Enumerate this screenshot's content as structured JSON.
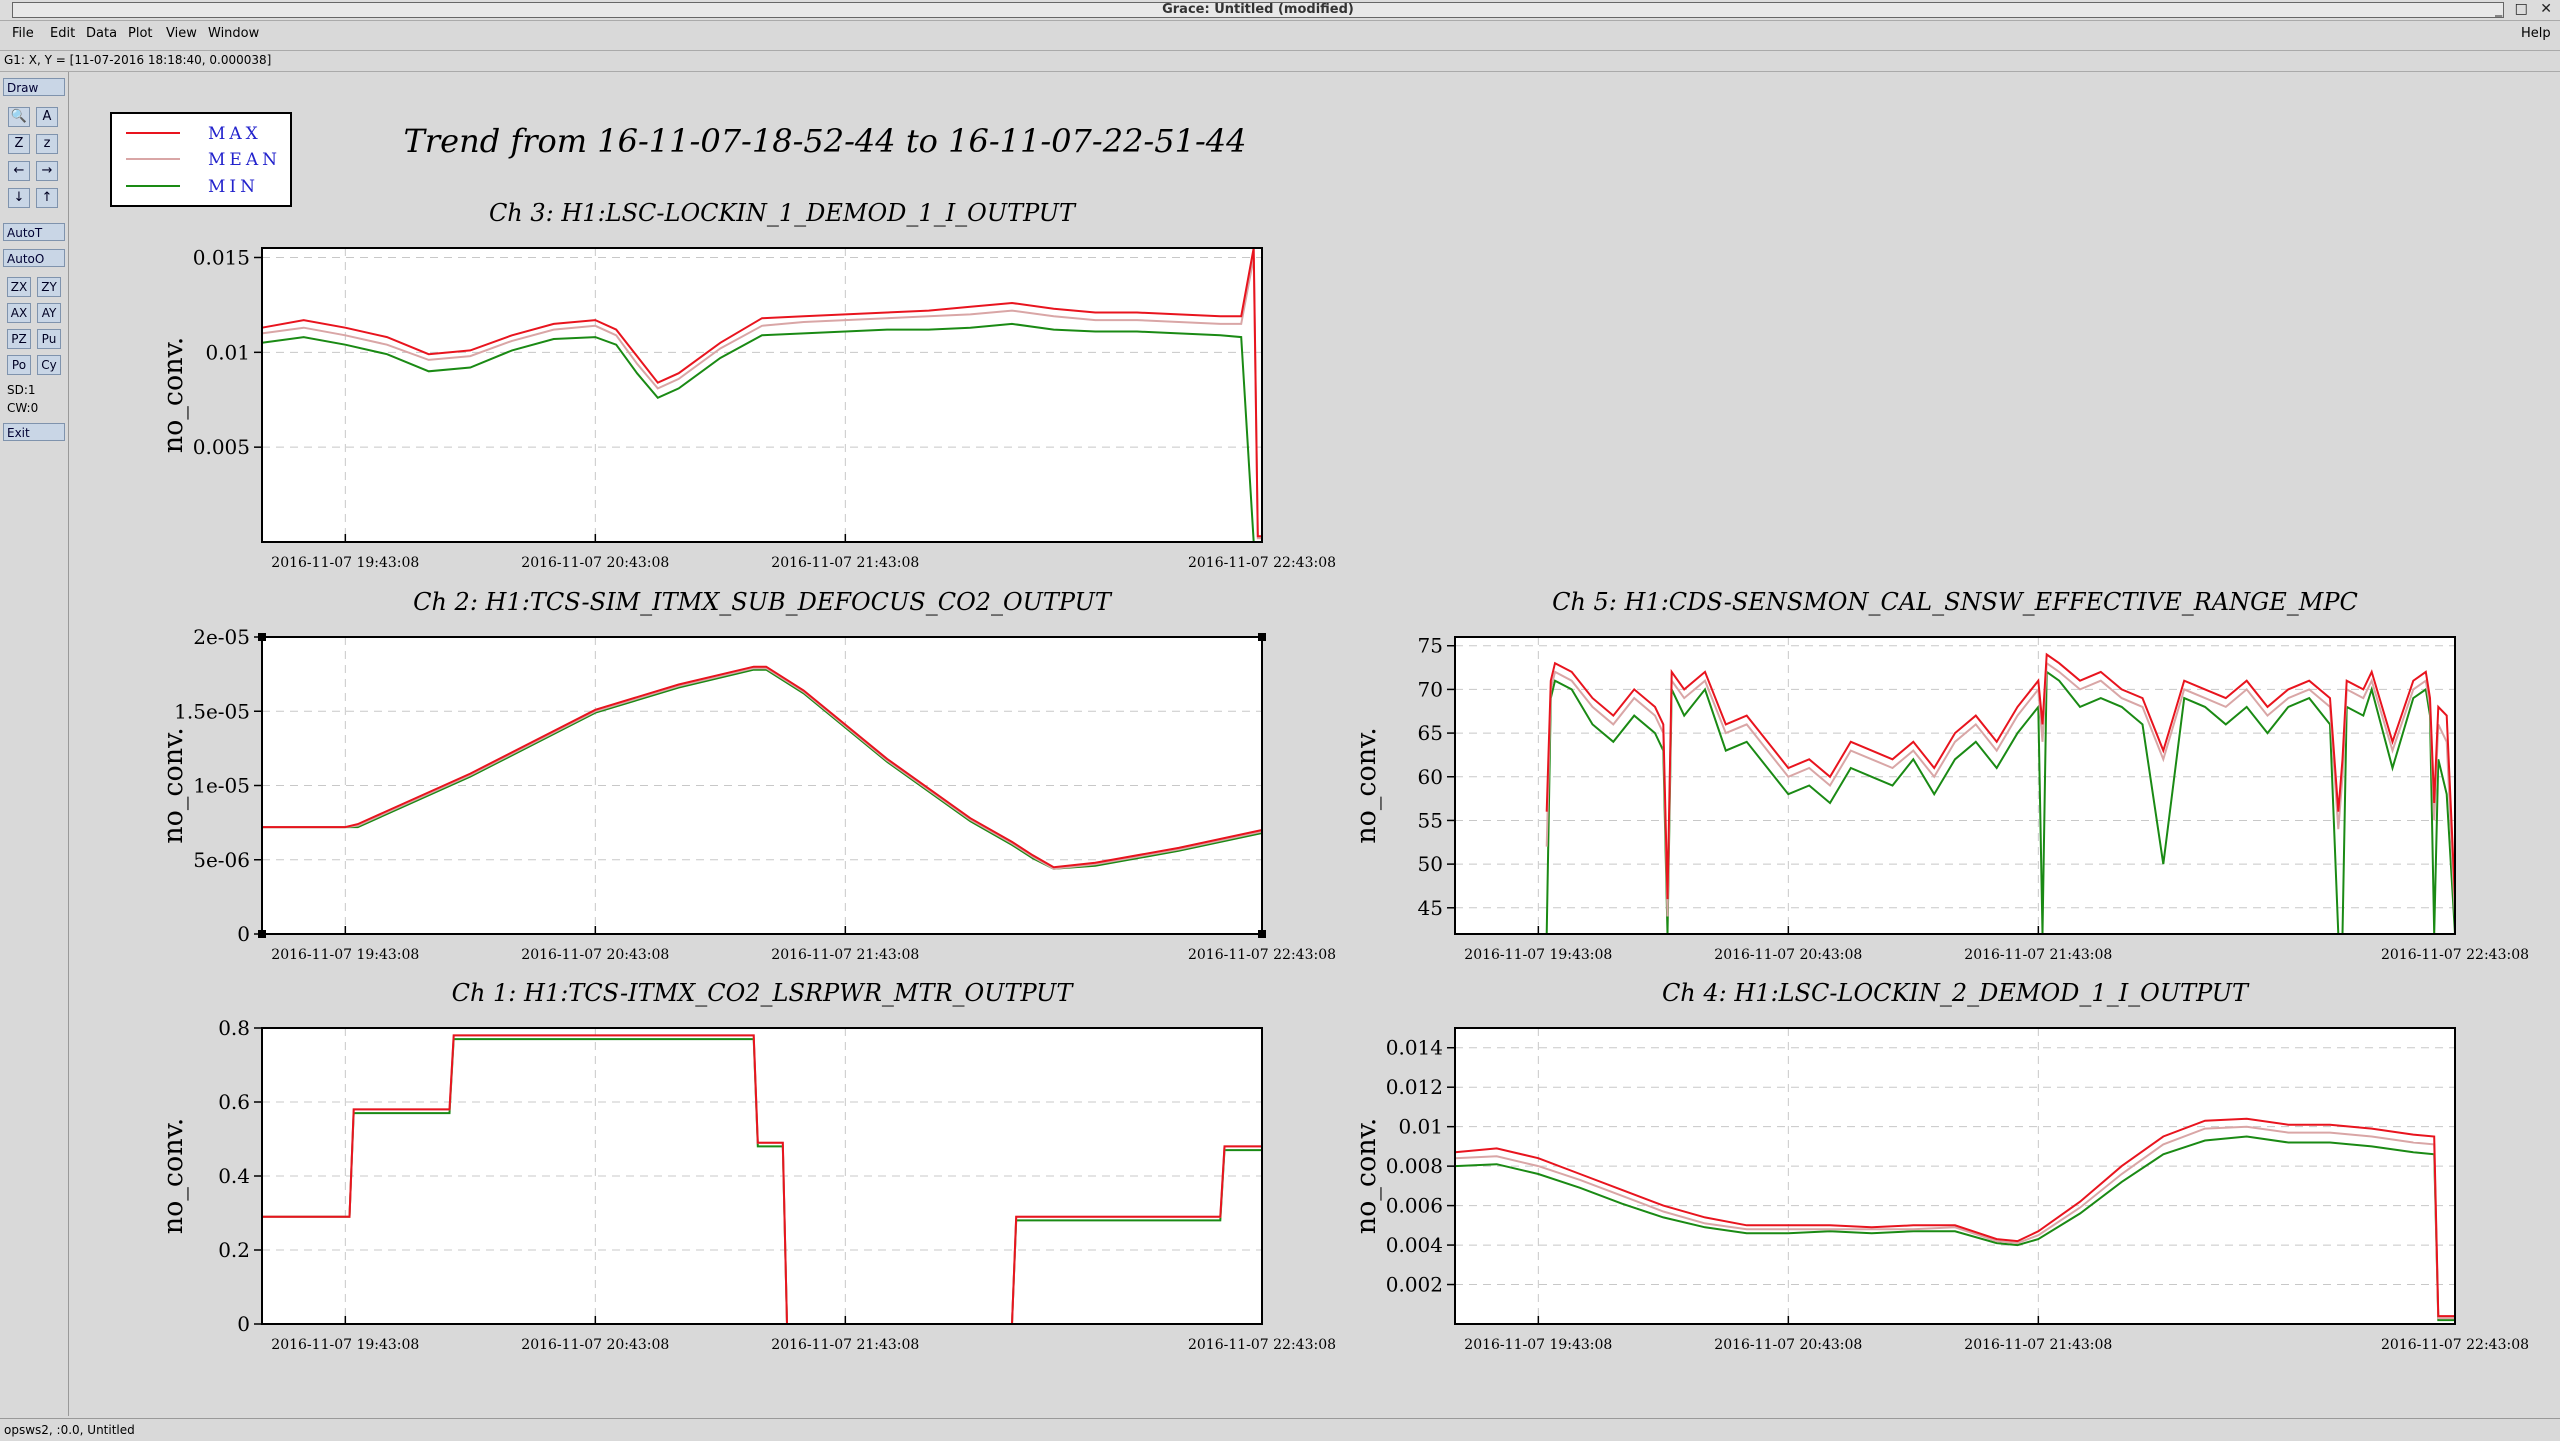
{
  "window": {
    "title": "Grace: Untitled (modified)",
    "controls": "_ □ ✕"
  },
  "menu": {
    "items": [
      "File",
      "Edit",
      "Data",
      "Plot",
      "View",
      "Window"
    ],
    "help": "Help"
  },
  "locator": {
    "text": "G1: X, Y = [11-07-2016 18:18:40, 0.000038]"
  },
  "toolbar": {
    "draw": "Draw",
    "icons": [
      "zoom-icon",
      "autoscale-icon",
      "zoom-in-icon",
      "zoom-out-icon",
      "scroll-left-icon",
      "scroll-right-icon",
      "scroll-down-icon",
      "scroll-up-icon"
    ],
    "auto_t": "AutoT",
    "auto_o": "AutoO",
    "small": [
      "ZX",
      "ZY",
      "AX",
      "AY",
      "PZ",
      "Pu",
      "Po",
      "Cy"
    ],
    "sd": "SD:1",
    "cw": "CW:0",
    "exit": "Exit"
  },
  "status": {
    "text": "opsws2, :0.0, Untitled"
  },
  "page_title": "Trend from 16-11-07-18-52-44 to 16-11-07-22-51-44",
  "legend": {
    "entries": [
      {
        "label": "MAX",
        "color": "#e8141e"
      },
      {
        "label": "MEAN",
        "color": "#d9a6a6"
      },
      {
        "label": "MIN",
        "color": "#1a8a14"
      }
    ]
  },
  "colors": {
    "max": "#e8141e",
    "mean": "#d9a6a6",
    "min": "#1a8a14",
    "label": "#2222cc"
  },
  "chart_data": [
    {
      "type": "line",
      "title": "Ch 3: H1:LSC-LOCKIN_1_DEMOD_1_I_OUTPUT",
      "ylabel": "no_conv.",
      "x_ticks": [
        "2016-11-07 19:43:08",
        "2016-11-07 20:43:08",
        "2016-11-07 21:43:08",
        "2016-11-07 22:43:08"
      ],
      "ylim": [
        0,
        0.0155
      ],
      "y_ticks": [
        {
          "v": 0.015,
          "l": "0.015"
        },
        {
          "v": 0.01,
          "l": "0.01"
        },
        {
          "v": 0.005,
          "l": "0.005"
        }
      ],
      "x": [
        0,
        10,
        20,
        30,
        40,
        50,
        60,
        70,
        80,
        85,
        90,
        95,
        100,
        110,
        120,
        130,
        140,
        150,
        160,
        170,
        180,
        190,
        200,
        210,
        220,
        230,
        235,
        238,
        239,
        240
      ],
      "series": [
        {
          "name": "MAX",
          "values": [
            0.0113,
            0.0117,
            0.0113,
            0.0108,
            0.0099,
            0.0101,
            0.0109,
            0.0115,
            0.0117,
            0.0112,
            0.0098,
            0.0084,
            0.0089,
            0.0105,
            0.0118,
            0.0119,
            0.012,
            0.0121,
            0.0122,
            0.0124,
            0.0126,
            0.0123,
            0.0121,
            0.0121,
            0.012,
            0.0119,
            0.0119,
            0.0155,
            0.0003,
            0.0003
          ]
        },
        {
          "name": "MEAN",
          "values": [
            0.011,
            0.0113,
            0.0109,
            0.0104,
            0.0096,
            0.0098,
            0.0106,
            0.0112,
            0.0114,
            0.0109,
            0.0094,
            0.0081,
            0.0086,
            0.0102,
            0.0114,
            0.0116,
            0.0117,
            0.0118,
            0.0119,
            0.012,
            0.0122,
            0.0119,
            0.0117,
            0.0117,
            0.0116,
            0.0115,
            0.0115,
            0.015,
            0.0002,
            0.0002
          ]
        },
        {
          "name": "MIN",
          "values": [
            0.0105,
            0.0108,
            0.0104,
            0.0099,
            0.009,
            0.0092,
            0.0101,
            0.0107,
            0.0108,
            0.0104,
            0.0089,
            0.0076,
            0.0081,
            0.0097,
            0.0109,
            0.011,
            0.0111,
            0.0112,
            0.0112,
            0.0113,
            0.0115,
            0.0112,
            0.0111,
            0.0111,
            0.011,
            0.0109,
            0.0108,
            0.0,
            0.0,
            0.0
          ]
        }
      ]
    },
    {
      "type": "line",
      "title": "Ch 2: H1:TCS-SIM_ITMX_SUB_DEFOCUS_CO2_OUTPUT",
      "ylabel": "no_conv.",
      "x_ticks": [
        "2016-11-07 19:43:08",
        "2016-11-07 20:43:08",
        "2016-11-07 21:43:08",
        "2016-11-07 22:43:08"
      ],
      "ylim": [
        0,
        2e-05
      ],
      "y_ticks": [
        {
          "v": 2e-05,
          "l": "2e-05"
        },
        {
          "v": 1.5e-05,
          "l": "1.5e-05"
        },
        {
          "v": 1e-05,
          "l": "1e-05"
        },
        {
          "v": 5e-06,
          "l": "5e-06"
        },
        {
          "v": 0,
          "l": "0"
        }
      ],
      "x": [
        0,
        20,
        23,
        50,
        80,
        100,
        118,
        121,
        130,
        150,
        170,
        180,
        185,
        190,
        200,
        220,
        240
      ],
      "series": [
        {
          "name": "MAX",
          "values": [
            7.2e-06,
            7.2e-06,
            7.4e-06,
            1.08e-05,
            1.51e-05,
            1.68e-05,
            1.8e-05,
            1.8e-05,
            1.64e-05,
            1.18e-05,
            7.8e-06,
            6.2e-06,
            5.3e-06,
            4.5e-06,
            4.8e-06,
            5.8e-06,
            7e-06
          ]
        },
        {
          "name": "MEAN",
          "values": [
            7.2e-06,
            7.2e-06,
            7.3e-06,
            1.07e-05,
            1.5e-05,
            1.67e-05,
            1.79e-05,
            1.79e-05,
            1.63e-05,
            1.17e-05,
            7.7e-06,
            6.1e-06,
            5.2e-06,
            4.4e-06,
            4.7e-06,
            5.7e-06,
            6.9e-06
          ]
        },
        {
          "name": "MIN",
          "values": [
            7.2e-06,
            7.2e-06,
            7.2e-06,
            1.06e-05,
            1.49e-05,
            1.66e-05,
            1.78e-05,
            1.78e-05,
            1.62e-05,
            1.16e-05,
            7.6e-06,
            6e-06,
            5.1e-06,
            4.4e-06,
            4.6e-06,
            5.6e-06,
            6.8e-06
          ]
        }
      ]
    },
    {
      "type": "line",
      "title": "Ch 5: H1:CDS-SENSMON_CAL_SNSW_EFFECTIVE_RANGE_MPC",
      "ylabel": "no_conv.",
      "x_ticks": [
        "2016-11-07 19:43:08",
        "2016-11-07 20:43:08",
        "2016-11-07 21:43:08",
        "2016-11-07 22:43:08"
      ],
      "ylim": [
        42,
        76
      ],
      "y_ticks": [
        {
          "v": 75,
          "l": "75"
        },
        {
          "v": 70,
          "l": "70"
        },
        {
          "v": 65,
          "l": "65"
        },
        {
          "v": 60,
          "l": "60"
        },
        {
          "v": 55,
          "l": "55"
        },
        {
          "v": 50,
          "l": "50"
        },
        {
          "v": 45,
          "l": "45"
        }
      ],
      "x": [
        22,
        23,
        24,
        28,
        33,
        38,
        43,
        48,
        50,
        51,
        52,
        55,
        60,
        65,
        70,
        75,
        80,
        85,
        90,
        95,
        100,
        105,
        110,
        115,
        120,
        125,
        130,
        135,
        140,
        141,
        142,
        145,
        150,
        155,
        160,
        165,
        170,
        175,
        180,
        185,
        190,
        195,
        200,
        205,
        210,
        212,
        213,
        214,
        218,
        220,
        225,
        230,
        233,
        234,
        235,
        236,
        238,
        240
      ],
      "series": [
        {
          "name": "MAX",
          "values": [
            56,
            71,
            73,
            72,
            69,
            67,
            70,
            68,
            66,
            46,
            72,
            70,
            72,
            66,
            67,
            64,
            61,
            62,
            60,
            64,
            63,
            62,
            64,
            61,
            65,
            67,
            64,
            68,
            71,
            66,
            74,
            73,
            71,
            72,
            70,
            69,
            63,
            71,
            70,
            69,
            71,
            68,
            70,
            71,
            69,
            56,
            62,
            71,
            70,
            72,
            64,
            71,
            72,
            69,
            57,
            68,
            67,
            46
          ]
        },
        {
          "name": "MEAN",
          "values": [
            52,
            70,
            72,
            71,
            68,
            66,
            69,
            67,
            65,
            44,
            71,
            69,
            71,
            65,
            66,
            63,
            60,
            61,
            59,
            63,
            62,
            61,
            63,
            60,
            64,
            66,
            63,
            67,
            70,
            64,
            73,
            72,
            70,
            71,
            69,
            68,
            62,
            70,
            69,
            68,
            70,
            67,
            69,
            70,
            68,
            54,
            60,
            70,
            69,
            71,
            63,
            70,
            71,
            68,
            55,
            66,
            64,
            44
          ]
        },
        {
          "name": "MIN",
          "values": [
            42,
            69,
            71,
            70,
            66,
            64,
            67,
            65,
            63,
            42,
            70,
            67,
            70,
            63,
            64,
            61,
            58,
            59,
            57,
            61,
            60,
            59,
            62,
            58,
            62,
            64,
            61,
            65,
            68,
            42,
            72,
            71,
            68,
            69,
            68,
            66,
            50,
            69,
            68,
            66,
            68,
            65,
            68,
            69,
            66,
            42,
            42,
            68,
            67,
            70,
            61,
            69,
            70,
            67,
            42,
            62,
            58,
            42
          ]
        }
      ]
    },
    {
      "type": "line",
      "title": "Ch 1: H1:TCS-ITMX_CO2_LSRPWR_MTR_OUTPUT",
      "ylabel": "no_conv.",
      "x_ticks": [
        "2016-11-07 19:43:08",
        "2016-11-07 20:43:08",
        "2016-11-07 21:43:08",
        "2016-11-07 22:43:08"
      ],
      "ylim": [
        0,
        0.8
      ],
      "y_ticks": [
        {
          "v": 0.8,
          "l": "0.8"
        },
        {
          "v": 0.6,
          "l": "0.6"
        },
        {
          "v": 0.4,
          "l": "0.4"
        },
        {
          "v": 0.2,
          "l": "0.2"
        },
        {
          "v": 0,
          "l": "0"
        }
      ],
      "x": [
        0,
        21,
        22,
        45,
        46,
        118,
        119,
        125,
        126,
        180,
        181,
        230,
        231,
        240
      ],
      "series": [
        {
          "name": "MAX",
          "values": [
            0.29,
            0.29,
            0.58,
            0.58,
            0.78,
            0.78,
            0.49,
            0.49,
            0.0,
            0.0,
            0.29,
            0.29,
            0.48,
            0.48
          ]
        },
        {
          "name": "MEAN",
          "values": [
            0.29,
            0.29,
            0.58,
            0.58,
            0.78,
            0.78,
            0.49,
            0.49,
            0.0,
            0.0,
            0.29,
            0.29,
            0.48,
            0.48
          ]
        },
        {
          "name": "MIN",
          "values": [
            0.29,
            0.29,
            0.57,
            0.57,
            0.77,
            0.77,
            0.48,
            0.48,
            0.0,
            0.0,
            0.28,
            0.28,
            0.47,
            0.47
          ]
        }
      ]
    },
    {
      "type": "line",
      "title": "Ch 4: H1:LSC-LOCKIN_2_DEMOD_1_I_OUTPUT",
      "ylabel": "no_conv.",
      "x_ticks": [
        "2016-11-07 19:43:08",
        "2016-11-07 20:43:08",
        "2016-11-07 21:43:08",
        "2016-11-07 22:43:08"
      ],
      "ylim": [
        0,
        0.015
      ],
      "y_ticks": [
        {
          "v": 0.014,
          "l": "0.014"
        },
        {
          "v": 0.012,
          "l": "0.012"
        },
        {
          "v": 0.01,
          "l": "0.01"
        },
        {
          "v": 0.008,
          "l": "0.008"
        },
        {
          "v": 0.006,
          "l": "0.006"
        },
        {
          "v": 0.004,
          "l": "0.004"
        },
        {
          "v": 0.002,
          "l": "0.002"
        }
      ],
      "x": [
        0,
        10,
        20,
        30,
        40,
        50,
        60,
        70,
        80,
        90,
        100,
        110,
        120,
        130,
        135,
        140,
        150,
        160,
        170,
        180,
        190,
        200,
        210,
        220,
        230,
        235,
        236,
        240
      ],
      "series": [
        {
          "name": "MAX",
          "values": [
            0.0087,
            0.0089,
            0.0084,
            0.0076,
            0.0068,
            0.006,
            0.0054,
            0.005,
            0.005,
            0.005,
            0.0049,
            0.005,
            0.005,
            0.0043,
            0.0042,
            0.0047,
            0.0062,
            0.008,
            0.0095,
            0.0103,
            0.0104,
            0.0101,
            0.0101,
            0.0099,
            0.0096,
            0.0095,
            0.0004,
            0.0004
          ]
        },
        {
          "name": "MEAN",
          "values": [
            0.0084,
            0.0085,
            0.008,
            0.0073,
            0.0065,
            0.0057,
            0.0051,
            0.0048,
            0.0048,
            0.0048,
            0.0048,
            0.0048,
            0.0049,
            0.0042,
            0.0041,
            0.0045,
            0.0059,
            0.0076,
            0.0091,
            0.0099,
            0.01,
            0.0097,
            0.0097,
            0.0095,
            0.0092,
            0.0091,
            0.0003,
            0.0003
          ]
        },
        {
          "name": "MIN",
          "values": [
            0.008,
            0.0081,
            0.0076,
            0.0069,
            0.0061,
            0.0054,
            0.0049,
            0.0046,
            0.0046,
            0.0047,
            0.0046,
            0.0047,
            0.0047,
            0.0041,
            0.004,
            0.0043,
            0.0056,
            0.0072,
            0.0086,
            0.0093,
            0.0095,
            0.0092,
            0.0092,
            0.009,
            0.0087,
            0.0086,
            0.0002,
            0.0002
          ]
        }
      ]
    }
  ]
}
